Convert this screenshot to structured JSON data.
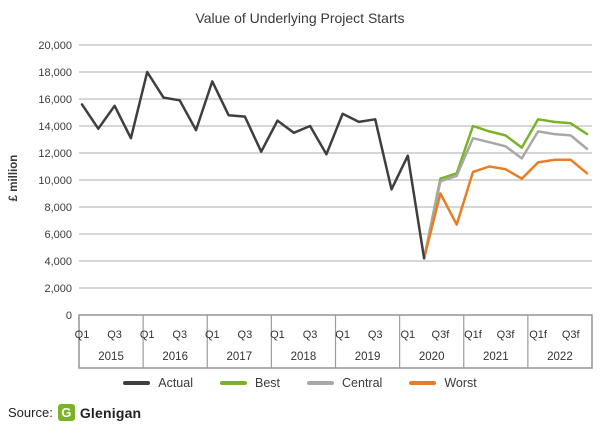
{
  "title": "Value of Underlying Project Starts",
  "source": {
    "prefix": "Source:",
    "brand": "Glenigan",
    "logo_letter": "G",
    "logo_color": "#7cb228"
  },
  "colors": {
    "gridline": "#aeaeae",
    "axis_table_border": "#9b9b9b",
    "tick_text": "#3b3b3b",
    "axis_text": "#333333"
  },
  "chart_data": {
    "type": "line",
    "title": "Value of Underlying Project Starts",
    "xlabel": "",
    "ylabel": "£ million",
    "ylim": [
      0,
      20000
    ],
    "ytick_step": 2000,
    "grid": "horizontal",
    "legend_position": "bottom",
    "ytick_labels_top_to_bottom": [
      "20,000",
      "18,000",
      "16,000",
      "14,000",
      "12,000",
      "10,000",
      "8,000",
      "6,000",
      "4,000",
      "2,000",
      "0"
    ],
    "x_axis_years": [
      {
        "year": "2015",
        "quarter_labels": [
          "Q1",
          "Q3"
        ]
      },
      {
        "year": "2016",
        "quarter_labels": [
          "Q1",
          "Q3"
        ]
      },
      {
        "year": "2017",
        "quarter_labels": [
          "Q1",
          "Q3"
        ]
      },
      {
        "year": "2018",
        "quarter_labels": [
          "Q1",
          "Q3"
        ]
      },
      {
        "year": "2019",
        "quarter_labels": [
          "Q1",
          "Q3"
        ]
      },
      {
        "year": "2020",
        "quarter_labels": [
          "Q1",
          "Q3f"
        ]
      },
      {
        "year": "2021",
        "quarter_labels": [
          "Q1f",
          "Q3f"
        ]
      },
      {
        "year": "2022",
        "quarter_labels": [
          "Q1f",
          "Q3f"
        ]
      }
    ],
    "n_quarters": 32,
    "series": [
      {
        "name": "Best",
        "color": "#7cb228",
        "start_index": 21,
        "values": [
          4200,
          10100,
          10500,
          14000,
          13600,
          13300,
          12400,
          14500,
          14300,
          14200,
          13400
        ]
      },
      {
        "name": "Central",
        "color": "#a8a8a8",
        "start_index": 21,
        "values": [
          4200,
          9900,
          10300,
          13100,
          12800,
          12500,
          11600,
          13600,
          13400,
          13300,
          12300
        ]
      },
      {
        "name": "Worst",
        "color": "#ea7d23",
        "start_index": 21,
        "values": [
          4200,
          9000,
          6700,
          10600,
          11000,
          10800,
          10100,
          11300,
          11500,
          11500,
          10500
        ]
      },
      {
        "name": "Actual",
        "color": "#3f3f3f",
        "start_index": 0,
        "values": [
          15600,
          13800,
          15500,
          13100,
          18000,
          16100,
          15900,
          13700,
          17300,
          14800,
          14700,
          12100,
          14400,
          13500,
          14000,
          11900,
          14900,
          14300,
          14500,
          9300,
          11800,
          4200
        ]
      }
    ],
    "legend_order": [
      "Actual",
      "Best",
      "Central",
      "Worst"
    ]
  }
}
